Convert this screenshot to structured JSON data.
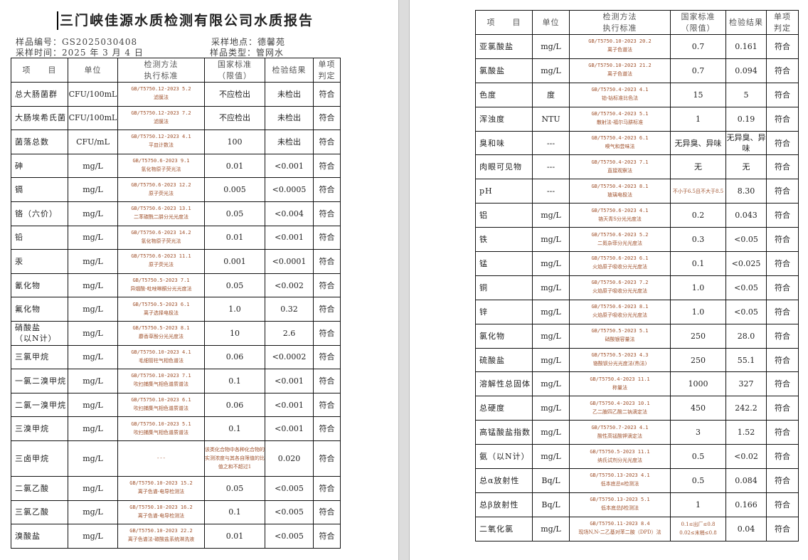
{
  "title": "三门峡佳源水质检测有限公司水质报告",
  "meta": {
    "sample_no": "样品编号：GS2025030408",
    "sample_time": "采样时间：2025 年 3 月 4 日",
    "location": "采样地点：德馨苑",
    "sample_type": "样品类型：管网水"
  },
  "headers": [
    "项　　目",
    "单位",
    "检测方法\n执行标准",
    "国家标准\n（限值）",
    "检验结果",
    "单项\n判定"
  ],
  "left_rows": [
    [
      "总大肠菌群",
      "CFU/100mL",
      "GB/T5750.12-2023 5.2",
      "滤膜法",
      "不应检出",
      "未检出",
      "符合"
    ],
    [
      "大肠埃希氏菌",
      "CFU/100mL",
      "GB/T5750.12-2023 7.2",
      "滤膜法",
      "不应检出",
      "未检出",
      "符合"
    ],
    [
      "菌落总数",
      "CFU/mL",
      "GB/T5750.12-2023 4.1",
      "平皿计数法",
      "100",
      "未检出",
      "符合"
    ],
    [
      "砷",
      "mg/L",
      "GB/T5750.6-2023 9.1",
      "氢化物原子荧光法",
      "0.01",
      "<0.001",
      "符合"
    ],
    [
      "镉",
      "mg/L",
      "GB/T5750.6-2023 12.2",
      "原子荧光法",
      "0.005",
      "<0.0005",
      "符合"
    ],
    [
      "铬（六价）",
      "mg/L",
      "GB/T5750.6-2023 13.1",
      "二苯碳酰二肼分光光度法",
      "0.05",
      "<0.004",
      "符合"
    ],
    [
      "铅",
      "mg/L",
      "GB/T5750.6-2023 14.2",
      "氢化物原子荧光法",
      "0.01",
      "<0.001",
      "符合"
    ],
    [
      "汞",
      "mg/L",
      "GB/T5750.6-2023 11.1",
      "原子荧光法",
      "0.001",
      "<0.0001",
      "符合"
    ],
    [
      "氰化物",
      "mg/L",
      "GB/T5750.5-2023 7.1",
      "异烟酸-吡唑啉酮分光光度法",
      "0.05",
      "<0.002",
      "符合"
    ],
    [
      "氟化物",
      "mg/L",
      "GB/T5750.5-2023 6.1",
      "离子选择电极法",
      "1.0",
      "0.32",
      "符合"
    ],
    [
      "硝酸盐\n（以N计）",
      "mg/L",
      "GB/T5750.5-2023 8.1",
      "麝香草酚分光光度法",
      "10",
      "2.6",
      "符合"
    ],
    [
      "三氯甲烷",
      "mg/L",
      "GB/T5750.10-2023 4.1",
      "毛细管柱气相色谱法",
      "0.06",
      "<0.0002",
      "符合"
    ],
    [
      "一氯二溴甲烷",
      "mg/L",
      "GB/T5750.10-2023 7.1",
      "吹扫捕集气相色谱质谱法",
      "0.1",
      "<0.001",
      "符合"
    ],
    [
      "二氯一溴甲烷",
      "mg/L",
      "GB/T5750.10-2023 6.1",
      "吹扫捕集气相色谱质谱法",
      "0.06",
      "<0.001",
      "符合"
    ],
    [
      "三溴甲烷",
      "mg/L",
      "GB/T5750.10-2023 5.1",
      "吹扫捕集气相色谱质谱法",
      "0.1",
      "<0.001",
      "符合"
    ],
    [
      "三卤甲烷",
      "mg/L",
      "---",
      "",
      "该类化合物中各种化合物的实测浓度与其各自限值的比值之和不超过1",
      "0.020",
      "符合"
    ],
    [
      "二氯乙酸",
      "mg/L",
      "GB/T5750.10-2023 15.2",
      "离子色谱-电导检测法",
      "0.05",
      "<0.005",
      "符合"
    ],
    [
      "三氯乙酸",
      "mg/L",
      "GB/T5750.10-2023 16.2",
      "离子色谱-电导检测法",
      "0.1",
      "<0.005",
      "符合"
    ],
    [
      "溴酸盐",
      "mg/L",
      "GB/T5750.10-2023 22.2",
      "离子色谱法-碳酸盐系统淋洗液",
      "0.01",
      "<0.005",
      "符合"
    ]
  ],
  "right_rows": [
    [
      "亚氯酸盐",
      "mg/L",
      "GB/T5750.10-2023 20.2",
      "离子色谱法",
      "0.7",
      "0.161",
      "符合"
    ],
    [
      "氯酸盐",
      "mg/L",
      "GB/T5750.10-2023 21.2",
      "离子色谱法",
      "0.7",
      "0.094",
      "符合"
    ],
    [
      "色度",
      "度",
      "GB/T5750.4-2023 4.1",
      "铂-钴标准比色法",
      "15",
      "5",
      "符合"
    ],
    [
      "浑浊度",
      "NTU",
      "GB/T5750.4-2023 5.1",
      "散射法-福尔马肼标准",
      "1",
      "0.19",
      "符合"
    ],
    [
      "臭和味",
      "---",
      "GB/T5750.4-2023 6.1",
      "嗅气和尝味法",
      "无异臭、异味",
      "无异臭、异味",
      "符合"
    ],
    [
      "肉眼可见物",
      "---",
      "GB/T5750.4-2023 7.1",
      "直接观察法",
      "无",
      "无",
      "符合"
    ],
    [
      "pH",
      "---",
      "GB/T5750.4-2023 8.1",
      "玻璃电极法",
      "不小于6.5且不大于8.5",
      "8.30",
      "符合"
    ],
    [
      "铝",
      "mg/L",
      "GB/T5750.6-2023 4.1",
      "铬天青S分光光度法",
      "0.2",
      "0.043",
      "符合"
    ],
    [
      "铁",
      "mg/L",
      "GB/T5750.6-2023 5.2",
      "二氮杂菲分光光度法",
      "0.3",
      "<0.05",
      "符合"
    ],
    [
      "锰",
      "mg/L",
      "GB/T5750.6-2023 6.1",
      "火焰原子吸收分光光度法",
      "0.1",
      "<0.025",
      "符合"
    ],
    [
      "铜",
      "mg/L",
      "GB/T5750.6-2023 7.2",
      "火焰原子吸收分光光度法",
      "1.0",
      "<0.05",
      "符合"
    ],
    [
      "锌",
      "mg/L",
      "GB/T5750.6-2023 8.1",
      "火焰原子吸收分光光度法",
      "1.0",
      "<0.05",
      "符合"
    ],
    [
      "氯化物",
      "mg/L",
      "GB/T5750.5-2023 5.1",
      "硝酸银容量法",
      "250",
      "28.0",
      "符合"
    ],
    [
      "硫酸盐",
      "mg/L",
      "GB/T5750.5-2023 4.3",
      "铬酸钡分光光度法(热法)",
      "250",
      "55.1",
      "符合"
    ],
    [
      "溶解性总固体",
      "mg/L",
      "GB/T5750.4-2023 11.1",
      "称量法",
      "1000",
      "327",
      "符合"
    ],
    [
      "总硬度",
      "mg/L",
      "GB/T5750.4-2023 10.1",
      "乙二胺四乙酸二钠滴定法",
      "450",
      "242.2",
      "符合"
    ],
    [
      "高锰酸盐指数",
      "mg/L",
      "GB/T5750.7-2023 4.1",
      "酸性高锰酸钾滴定法",
      "3",
      "1.52",
      "符合"
    ],
    [
      "氨（以N计）",
      "mg/L",
      "GB/T5750.5-2023 11.1",
      "纳氏试剂分光光度法",
      "0.5",
      "<0.02",
      "符合"
    ],
    [
      "总α放射性",
      "Bq/L",
      "GB/T5750.13-2023 4.1",
      "低本底总α检测法",
      "0.5",
      "0.084",
      "符合"
    ],
    [
      "总β放射性",
      "Bq/L",
      "GB/T5750.13-2023 5.1",
      "低本底总β检测法",
      "1",
      "0.166",
      "符合"
    ],
    [
      "二氧化氯",
      "mg/L",
      "GB/T5750.11-2023 8.4",
      "现场N,N-二乙基对苯二胺（DPD）法",
      "0.1≤出厂≤0.8\n0.02≤末梢≤0.8",
      "0.04",
      "符合"
    ]
  ]
}
